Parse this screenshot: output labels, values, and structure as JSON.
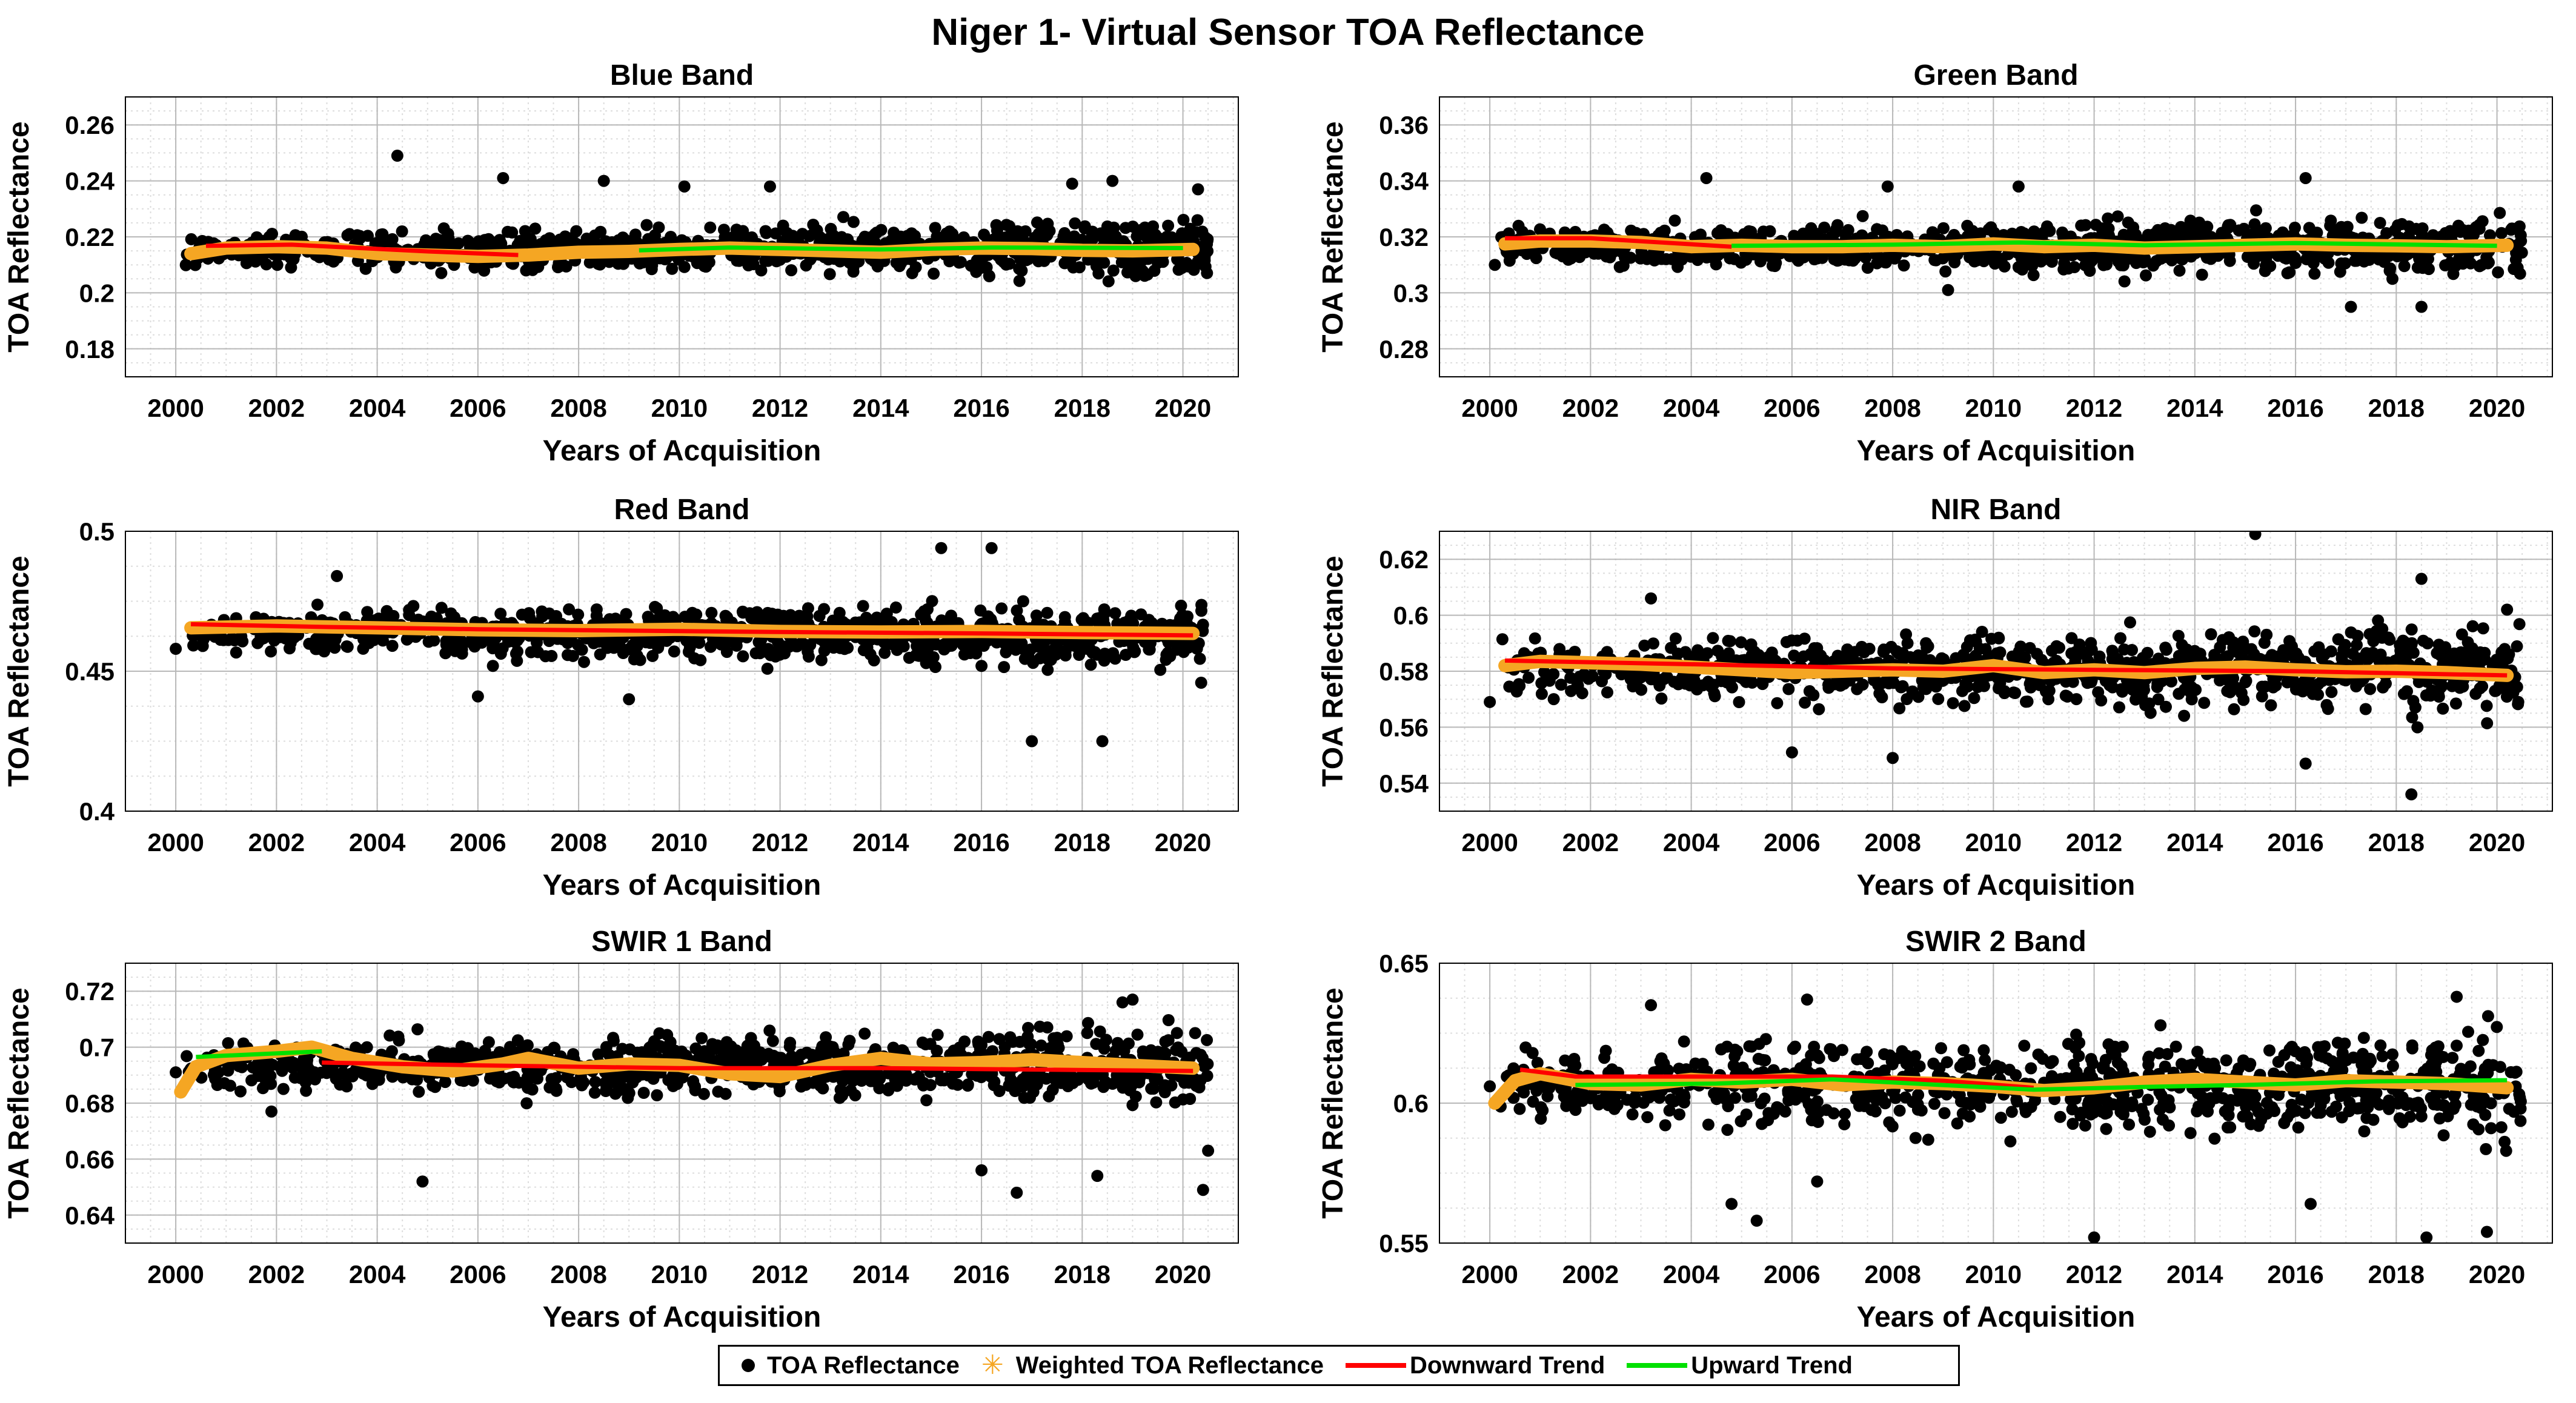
{
  "figure_title": "Niger 1- Virtual Sensor TOA Reflectance",
  "colors": {
    "points": "#000000",
    "weighted": "#f5a623",
    "downward": "#ff0000",
    "upward": "#00e000",
    "grid_major": "#b8b8b8",
    "grid_minor": "#dddddd"
  },
  "legend": {
    "toa": "TOA Reflectance",
    "weighted": "Weighted TOA Reflectance",
    "downward": "Downward Trend",
    "upward": "Upward Trend"
  },
  "chart_data": [
    {
      "type": "scatter",
      "title": "Blue Band",
      "xlabel": "Years of Acquisition",
      "ylabel": "TOA Reflectance",
      "xlim": [
        1999,
        2021.1
      ],
      "ylim": [
        0.17,
        0.27
      ],
      "xticks": [
        2000,
        2002,
        2004,
        2006,
        2008,
        2010,
        2012,
        2014,
        2016,
        2018,
        2020
      ],
      "yticks": [
        0.18,
        0.2,
        0.22,
        0.24,
        0.26
      ],
      "ytick_labels": [
        "0.18",
        "0.2",
        "0.22",
        "0.24",
        "0.26"
      ],
      "points": {
        "mean": 0.2155,
        "spread": 0.0055,
        "drift": 0,
        "seed": 11
      },
      "outliers": [
        [
          2004.4,
          0.249
        ],
        [
          2006.5,
          0.241
        ],
        [
          2008.5,
          0.24
        ],
        [
          2010.1,
          0.238
        ],
        [
          2018.6,
          0.24
        ],
        [
          2017.8,
          0.239
        ],
        [
          2000.2,
          0.21
        ],
        [
          2011.8,
          0.238
        ],
        [
          2020.3,
          0.237
        ]
      ],
      "weighted_curve": [
        [
          2000.3,
          0.214
        ],
        [
          2001,
          0.216
        ],
        [
          2002,
          0.2165
        ],
        [
          2003,
          0.216
        ],
        [
          2004,
          0.214
        ],
        [
          2005,
          0.2135
        ],
        [
          2006,
          0.213
        ],
        [
          2007,
          0.2135
        ],
        [
          2008,
          0.2145
        ],
        [
          2009,
          0.2148
        ],
        [
          2010,
          0.2155
        ],
        [
          2011,
          0.216
        ],
        [
          2012,
          0.2155
        ],
        [
          2013,
          0.215
        ],
        [
          2014,
          0.2145
        ],
        [
          2015,
          0.2155
        ],
        [
          2016,
          0.216
        ],
        [
          2017,
          0.2158
        ],
        [
          2018,
          0.2152
        ],
        [
          2019,
          0.215
        ],
        [
          2020.2,
          0.2155
        ]
      ],
      "down_trend": [
        [
          2000.6,
          0.2168
        ],
        [
          2002.3,
          0.2172
        ],
        [
          2005,
          0.2148
        ],
        [
          2006.8,
          0.2135
        ]
      ],
      "up_trend": [
        [
          2009.2,
          0.2152
        ],
        [
          2011,
          0.2162
        ],
        [
          2014,
          0.2155
        ],
        [
          2016.2,
          0.2162
        ],
        [
          2020,
          0.216
        ]
      ]
    },
    {
      "type": "scatter",
      "title": "Green Band",
      "xlabel": "Years of Acquisition",
      "ylabel": "TOA Reflectance",
      "xlim": [
        1999,
        2021.1
      ],
      "ylim": [
        0.27,
        0.37
      ],
      "xticks": [
        2000,
        2002,
        2004,
        2006,
        2008,
        2010,
        2012,
        2014,
        2016,
        2018,
        2020
      ],
      "yticks": [
        0.28,
        0.3,
        0.32,
        0.34,
        0.36
      ],
      "ytick_labels": [
        "0.28",
        "0.3",
        "0.32",
        "0.34",
        "0.36"
      ],
      "points": {
        "mean": 0.3165,
        "spread": 0.006,
        "drift": 0,
        "seed": 23
      },
      "outliers": [
        [
          2004.3,
          0.341
        ],
        [
          2016.2,
          0.341
        ],
        [
          2000.1,
          0.31
        ],
        [
          2018.5,
          0.295
        ],
        [
          2017.1,
          0.295
        ],
        [
          2009.1,
          0.301
        ],
        [
          2010.5,
          0.338
        ],
        [
          2007.9,
          0.338
        ]
      ],
      "weighted_curve": [
        [
          2000.3,
          0.3175
        ],
        [
          2001,
          0.3185
        ],
        [
          2002,
          0.3185
        ],
        [
          2003,
          0.318
        ],
        [
          2004,
          0.3165
        ],
        [
          2005,
          0.317
        ],
        [
          2006,
          0.3165
        ],
        [
          2007,
          0.3165
        ],
        [
          2008,
          0.317
        ],
        [
          2009,
          0.3165
        ],
        [
          2010,
          0.3175
        ],
        [
          2011,
          0.3165
        ],
        [
          2012,
          0.317
        ],
        [
          2013,
          0.316
        ],
        [
          2014,
          0.3165
        ],
        [
          2015,
          0.317
        ],
        [
          2016,
          0.3175
        ],
        [
          2017,
          0.317
        ],
        [
          2018,
          0.3168
        ],
        [
          2019,
          0.3165
        ],
        [
          2020.2,
          0.317
        ]
      ],
      "down_trend": [
        [
          2000.3,
          0.3195
        ],
        [
          2002,
          0.3195
        ],
        [
          2004.8,
          0.3165
        ]
      ],
      "up_trend": [
        [
          2004.8,
          0.3168
        ],
        [
          2008,
          0.3172
        ],
        [
          2010.5,
          0.318
        ],
        [
          2013,
          0.317
        ],
        [
          2016,
          0.3178
        ],
        [
          2020,
          0.3168
        ]
      ]
    },
    {
      "type": "scatter",
      "title": "Red Band",
      "xlabel": "Years of Acquisition",
      "ylabel": "TOA Reflectance",
      "xlim": [
        1999,
        2021.1
      ],
      "ylim": [
        0.4,
        0.5
      ],
      "xticks": [
        2000,
        2002,
        2004,
        2006,
        2008,
        2010,
        2012,
        2014,
        2016,
        2018,
        2020
      ],
      "yticks": [
        0.4,
        0.45,
        0.5
      ],
      "ytick_labels": [
        "0.4",
        "0.45",
        "0.5"
      ],
      "points": {
        "mean": 0.4645,
        "spread": 0.0065,
        "drift": -0.0001,
        "seed": 37
      },
      "outliers": [
        [
          2015.2,
          0.494
        ],
        [
          2016.2,
          0.494
        ],
        [
          2017,
          0.425
        ],
        [
          2018.4,
          0.425
        ],
        [
          2000,
          0.458
        ],
        [
          2006,
          0.441
        ],
        [
          2009,
          0.44
        ],
        [
          2003.2,
          0.484
        ]
      ],
      "weighted_curve": [
        [
          2000.3,
          0.4655
        ],
        [
          2002,
          0.4662
        ],
        [
          2004,
          0.4655
        ],
        [
          2006,
          0.4648
        ],
        [
          2008,
          0.4645
        ],
        [
          2010,
          0.465
        ],
        [
          2012,
          0.4642
        ],
        [
          2014,
          0.464
        ],
        [
          2016,
          0.4642
        ],
        [
          2018,
          0.4638
        ],
        [
          2020.2,
          0.4635
        ]
      ],
      "down_trend": [
        [
          2000.3,
          0.4668
        ],
        [
          2003,
          0.4658
        ],
        [
          2006,
          0.465
        ],
        [
          2009,
          0.4645
        ],
        [
          2012,
          0.464
        ],
        [
          2016,
          0.4635
        ],
        [
          2020.2,
          0.4628
        ]
      ],
      "up_trend": []
    },
    {
      "type": "scatter",
      "title": "NIR Band",
      "xlabel": "Years of Acquisition",
      "ylabel": "TOA Reflectance",
      "xlim": [
        1999,
        2021.1
      ],
      "ylim": [
        0.53,
        0.63
      ],
      "xticks": [
        2000,
        2002,
        2004,
        2006,
        2008,
        2010,
        2012,
        2014,
        2016,
        2018,
        2020
      ],
      "yticks": [
        0.54,
        0.56,
        0.58,
        0.6,
        0.62
      ],
      "ytick_labels": [
        "0.54",
        "0.56",
        "0.58",
        "0.6",
        "0.62"
      ],
      "points": {
        "mean": 0.5805,
        "spread": 0.0085,
        "drift": 0,
        "seed": 51
      },
      "outliers": [
        [
          2015.2,
          0.629
        ],
        [
          2018.3,
          0.536
        ],
        [
          2018.5,
          0.613
        ],
        [
          2000,
          0.569
        ],
        [
          2006,
          0.551
        ],
        [
          2008,
          0.549
        ],
        [
          2003.2,
          0.606
        ],
        [
          2016.2,
          0.547
        ],
        [
          2020.2,
          0.602
        ]
      ],
      "weighted_curve": [
        [
          2000.3,
          0.582
        ],
        [
          2001,
          0.5835
        ],
        [
          2002,
          0.583
        ],
        [
          2003,
          0.5825
        ],
        [
          2004,
          0.5815
        ],
        [
          2005,
          0.5805
        ],
        [
          2006,
          0.5795
        ],
        [
          2007,
          0.58
        ],
        [
          2008,
          0.5805
        ],
        [
          2009,
          0.58
        ],
        [
          2010,
          0.582
        ],
        [
          2011,
          0.5795
        ],
        [
          2012,
          0.5805
        ],
        [
          2013,
          0.5795
        ],
        [
          2014,
          0.581
        ],
        [
          2015,
          0.5815
        ],
        [
          2016,
          0.5805
        ],
        [
          2017,
          0.5798
        ],
        [
          2018,
          0.58
        ],
        [
          2019,
          0.5795
        ],
        [
          2020.2,
          0.5785
        ]
      ],
      "down_trend": [
        [
          2000.3,
          0.5838
        ],
        [
          2004,
          0.5825
        ],
        [
          2008,
          0.581
        ],
        [
          2012,
          0.5805
        ],
        [
          2016,
          0.58
        ],
        [
          2020.2,
          0.5785
        ]
      ],
      "up_trend": []
    },
    {
      "type": "scatter",
      "title": "SWIR 1 Band",
      "xlabel": "Years of Acquisition",
      "ylabel": "TOA Reflectance",
      "xlim": [
        1999,
        2021.1
      ],
      "ylim": [
        0.63,
        0.73
      ],
      "xticks": [
        2000,
        2002,
        2004,
        2006,
        2008,
        2010,
        2012,
        2014,
        2016,
        2018,
        2020
      ],
      "yticks": [
        0.64,
        0.66,
        0.68,
        0.7,
        0.72
      ],
      "ytick_labels": [
        "0.64",
        "0.66",
        "0.68",
        "0.7",
        "0.72"
      ],
      "points": {
        "mean": 0.6935,
        "spread": 0.0075,
        "drift": 0,
        "seed": 67
      },
      "outliers": [
        [
          2004.9,
          0.652
        ],
        [
          2016,
          0.656
        ],
        [
          2016.7,
          0.648
        ],
        [
          2018.3,
          0.654
        ],
        [
          2020.4,
          0.649
        ],
        [
          2020.5,
          0.663
        ],
        [
          2019,
          0.717
        ],
        [
          2018.8,
          0.716
        ],
        [
          2000,
          0.691
        ],
        [
          2001.9,
          0.677
        ]
      ],
      "weighted_curve": [
        [
          2000.1,
          0.684
        ],
        [
          2000.4,
          0.693
        ],
        [
          2001,
          0.697
        ],
        [
          2002,
          0.6985
        ],
        [
          2002.7,
          0.7
        ],
        [
          2003.5,
          0.696
        ],
        [
          2004.5,
          0.693
        ],
        [
          2005.5,
          0.6915
        ],
        [
          2006.5,
          0.694
        ],
        [
          2007,
          0.696
        ],
        [
          2008,
          0.6925
        ],
        [
          2009,
          0.694
        ],
        [
          2010,
          0.6935
        ],
        [
          2011,
          0.6905
        ],
        [
          2012,
          0.6895
        ],
        [
          2013,
          0.6935
        ],
        [
          2014,
          0.696
        ],
        [
          2015,
          0.694
        ],
        [
          2016,
          0.6945
        ],
        [
          2017,
          0.6955
        ],
        [
          2018,
          0.6945
        ],
        [
          2019,
          0.6935
        ],
        [
          2020.2,
          0.6925
        ]
      ],
      "down_trend": [
        [
          2002.9,
          0.6945
        ],
        [
          2006,
          0.6935
        ],
        [
          2010,
          0.6925
        ],
        [
          2014,
          0.6925
        ],
        [
          2020.2,
          0.6915
        ]
      ],
      "up_trend": [
        [
          2000.4,
          0.6965
        ],
        [
          2002.9,
          0.6985
        ]
      ]
    },
    {
      "type": "scatter",
      "title": "SWIR 2 Band",
      "xlabel": "Years of Acquisition",
      "ylabel": "TOA Reflectance",
      "xlim": [
        1999,
        2021.1
      ],
      "ylim": [
        0.55,
        0.65
      ],
      "xticks": [
        2000,
        2002,
        2004,
        2006,
        2008,
        2010,
        2012,
        2014,
        2016,
        2018,
        2020
      ],
      "yticks": [
        0.55,
        0.6,
        0.65
      ],
      "ytick_labels": [
        "0.55",
        "0.6",
        "0.65"
      ],
      "points": {
        "mean": 0.6065,
        "spread": 0.011,
        "drift": 0,
        "seed": 83
      },
      "outliers": [
        [
          2012,
          0.552
        ],
        [
          2018.6,
          0.552
        ],
        [
          2019.8,
          0.554
        ],
        [
          2005.3,
          0.558
        ],
        [
          2016.3,
          0.564
        ],
        [
          2004.8,
          0.564
        ],
        [
          2006.5,
          0.572
        ],
        [
          2019.2,
          0.638
        ],
        [
          2006.3,
          0.637
        ],
        [
          2003.2,
          0.635
        ],
        [
          2000,
          0.606
        ]
      ],
      "weighted_curve": [
        [
          2000.1,
          0.6
        ],
        [
          2000.5,
          0.608
        ],
        [
          2001,
          0.6105
        ],
        [
          2002,
          0.607
        ],
        [
          2003,
          0.6065
        ],
        [
          2004,
          0.6085
        ],
        [
          2005,
          0.6075
        ],
        [
          2006,
          0.6085
        ],
        [
          2007,
          0.6065
        ],
        [
          2008,
          0.6075
        ],
        [
          2009,
          0.607
        ],
        [
          2010,
          0.606
        ],
        [
          2011,
          0.6045
        ],
        [
          2012,
          0.6055
        ],
        [
          2013,
          0.6075
        ],
        [
          2014,
          0.6085
        ],
        [
          2015,
          0.6075
        ],
        [
          2016,
          0.6065
        ],
        [
          2017,
          0.608
        ],
        [
          2018,
          0.6075
        ],
        [
          2019,
          0.607
        ],
        [
          2020.2,
          0.6055
        ]
      ],
      "down_trend": [
        [
          2000.6,
          0.612
        ],
        [
          2001.7,
          0.6095
        ],
        [
          2006.8,
          0.6095
        ],
        [
          2009,
          0.608
        ],
        [
          2010.8,
          0.6055
        ]
      ],
      "up_trend": [
        [
          2001.7,
          0.6065
        ],
        [
          2004.5,
          0.607
        ],
        [
          2006.8,
          0.6085
        ],
        [
          2010.8,
          0.6048
        ],
        [
          2013,
          0.6058
        ],
        [
          2015,
          0.6065
        ],
        [
          2017.6,
          0.6078
        ],
        [
          2020.2,
          0.6082
        ]
      ]
    }
  ]
}
